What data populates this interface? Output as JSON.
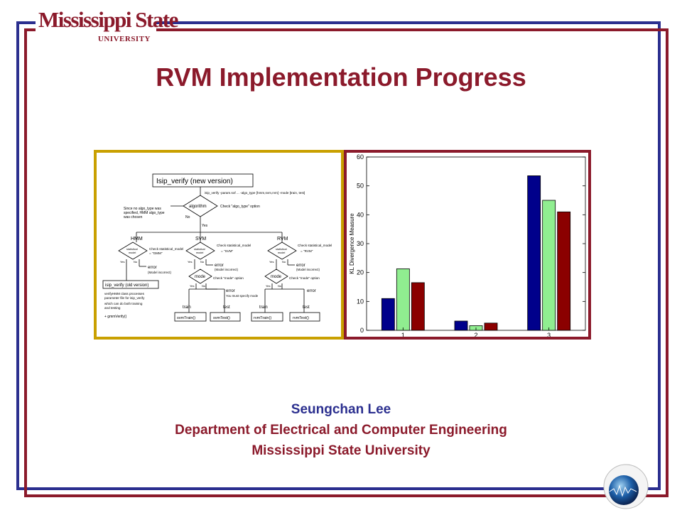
{
  "logo": {
    "line1": "Mississippi State",
    "line2": "UNIVERSITY"
  },
  "title": "RVM Implementation Progress",
  "flowchart": {
    "top_box": "Isip_verify (new version)",
    "cmd": "isip_verify -param.sof ... -algo_type [hmm,svm,rvm] -mode [train, test]",
    "algorithm": "algorithm",
    "check_algo": "Check \"algo_type\" option",
    "note1": "Since no algo_type was",
    "note2": "specified, HMM algo_type",
    "note3": "was chosen",
    "no": "No",
    "yes": "Yes",
    "hmm": "HMM",
    "svm": "SVM",
    "rvm": "RVM",
    "stat_model_l1": "statistical",
    "stat_model_l2": "model",
    "check_stat": "Check statistical_model",
    "eq_gmm": "= \"GMM\"",
    "eq_svm": "= \"SVM\"",
    "eq_rvm": "= \"RVM\"",
    "error": "error",
    "model_incorrect": "(Model incorrect)",
    "old_version": "isip_verify (old version)",
    "old_note1": "verifyHMM class processes",
    "old_note2": "parameter file for isip_verify",
    "old_note3": "which can do both training",
    "old_note4": "and testing",
    "gmm_verify": "+ gmmVerify()",
    "mode": "mode",
    "check_mode": "Check \"mode\" option",
    "must_specify": "You must specify mode",
    "train": "train",
    "test": "test",
    "svm_train": "svmTrain()",
    "svm_test": "svmTest()",
    "rvm_train": "rvmTrain()",
    "rvm_test": "rvmTest()"
  },
  "chart_data": {
    "type": "bar",
    "categories": [
      "1",
      "2",
      "3"
    ],
    "series": [
      {
        "color": "#00008b",
        "values": [
          11,
          3.2,
          53.5
        ]
      },
      {
        "color": "#90ee90",
        "values": [
          21.3,
          1.6,
          45
        ]
      },
      {
        "color": "#8b0000",
        "values": [
          16.5,
          2.5,
          41
        ]
      }
    ],
    "ylabel": "KL Divergence Measure",
    "ylim": [
      0,
      60
    ],
    "yticks": [
      "0",
      "10",
      "20",
      "30",
      "40",
      "50",
      "60"
    ],
    "grid": false
  },
  "footer": {
    "author": "Seungchan Lee",
    "department": "Department of Electrical and Computer Engineering",
    "university": "Mississippi State University"
  },
  "colors": {
    "maroon": "#8b1a2b",
    "navy": "#2b2f8f",
    "gold": "#c9a000"
  }
}
